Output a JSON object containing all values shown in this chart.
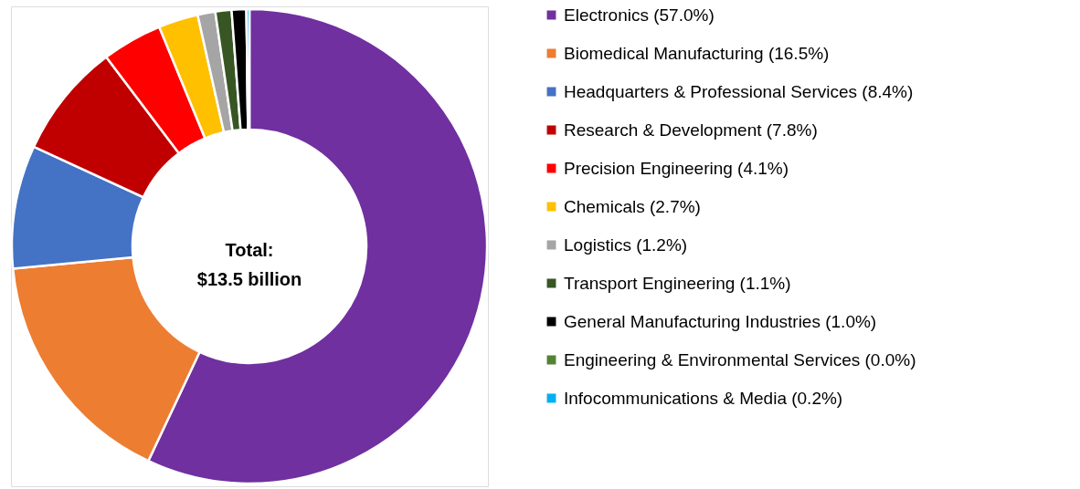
{
  "chart_data": {
    "type": "donut",
    "categories": [
      "Electronics (57.0%)",
      "Biomedical Manufacturing (16.5%)",
      "Headquarters & Professional Services (8.4%)",
      "Research & Development (7.8%)",
      "Precision Engineering (4.1%)",
      "Chemicals (2.7%)",
      "Logistics (1.2%)",
      "Transport Engineering (1.1%)",
      "General Manufacturing Industries (1.0%)",
      "Engineering & Environmental Services (0.0%)",
      "Infocommunications & Media (0.2%)"
    ],
    "values": [
      57.0,
      16.5,
      8.4,
      7.8,
      4.1,
      2.7,
      1.2,
      1.1,
      1.0,
      0.0,
      0.2
    ],
    "colors": [
      "#7030a0",
      "#ed7d31",
      "#4472c4",
      "#c00000",
      "#ff0000",
      "#ffc000",
      "#a5a5a5",
      "#375623",
      "#000000",
      "#548235",
      "#00b0f0"
    ],
    "annotations": [
      "Total:\n$13.5 billion"
    ],
    "legend": "right"
  }
}
